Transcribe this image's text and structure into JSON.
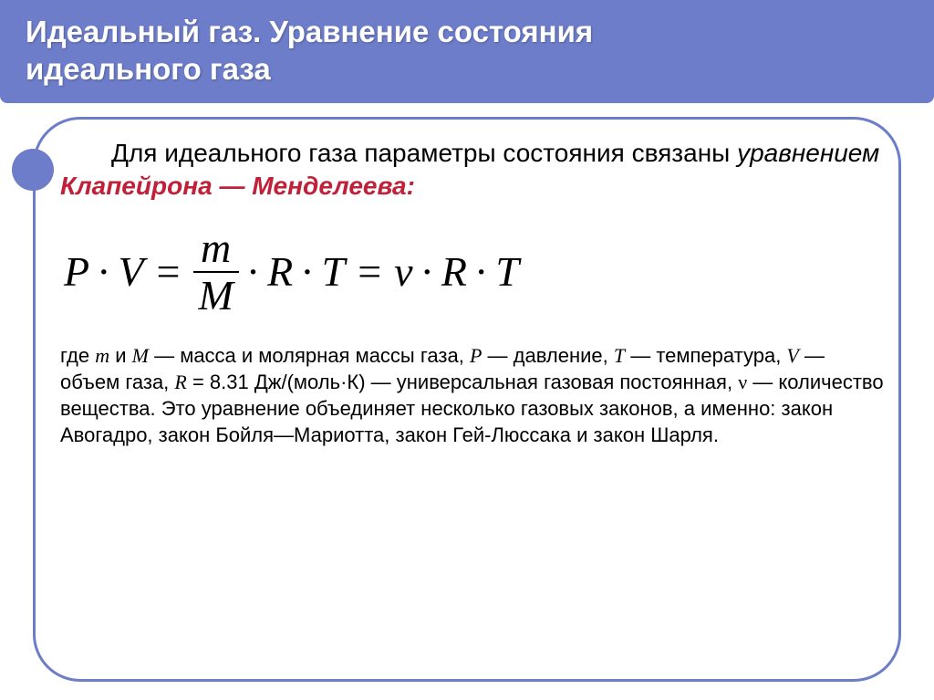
{
  "colors": {
    "header_bg": "#6d7dc9",
    "header_text": "#ffffff",
    "keyword": "#c02038",
    "border": "#6d7dc9",
    "bullet": "#6d7dc9",
    "body_bg": "#ffffff",
    "text": "#000000"
  },
  "fonts": {
    "header_size": 33,
    "intro_size": 28,
    "equation_size": 46,
    "desc_size": 22
  },
  "header": {
    "line1": "Идеальный газ. Уравнение состояния",
    "line2": "идеального газа"
  },
  "intro": {
    "text_pre": "Для идеального газа параметры состояния связаны ",
    "italic1": "уравнением ",
    "keyword": "Клапейрона — Менделеева:"
  },
  "equation": {
    "P": "P",
    "V": "V",
    "m": "m",
    "M": "M",
    "R": "R",
    "T": "T",
    "nu": "ν",
    "dot": "·",
    "eq": "="
  },
  "desc": {
    "p1a": "где ",
    "m": "m",
    "p1b": " и ",
    "MM": "M",
    "p1c": " — масса и молярная массы газа,  ",
    "PP": "P",
    "p1d": " — давление, ",
    "TT": "T",
    "p1e": " — температура,   ",
    "VV": "V",
    "p1f": " — объем газа, ",
    "RR": "R",
    "Rval": "  = 8.31 Дж/(моль·К) — универсальная газовая постоянная, ",
    "nu": "ν",
    "p1g": " — количество вещества.  Это уравнение объединяет несколько газовых законов, а именно: закон Авогадро, закон Бойля—Мариотта, закон Гей-Люссака и закон Шарля."
  }
}
